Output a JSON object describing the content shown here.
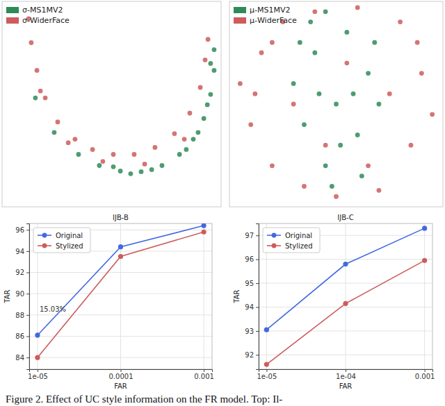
{
  "chart_data": [
    {
      "type": "scatter",
      "xlim": [
        0,
        100
      ],
      "ylim": [
        0,
        100
      ],
      "tick_labels": false,
      "grid": false,
      "legend": "upper left",
      "marker": "circle",
      "series": [
        {
          "name": "σ-MS1MV2",
          "color": "#2E8B57",
          "x": [
            34.9,
            44.4,
            54.0,
            63.5,
            73.0,
            81.0,
            87.3,
            92.1,
            95.2,
            96.8,
            96.8,
            50.8,
            68.3,
            84.1,
            93.7,
            95.2,
            23.8,
            15.2,
            58.7,
            89.5
          ],
          "y": [
            25.5,
            20.1,
            17.4,
            17.1,
            20.1,
            25.5,
            32.9,
            43.0,
            54.7,
            66.4,
            76.5,
            19.5,
            18.1,
            27.9,
            49.7,
            69.8,
            36.2,
            53.0,
            16.1,
            36.2
          ]
        },
        {
          "name": "σ-WiderFace",
          "color": "#CD5C5C",
          "x": [
            12.1,
            13.3,
            15.9,
            19.7,
            25.4,
            33.3,
            41.3,
            50.8,
            60.3,
            69.8,
            78.7,
            85.7,
            90.5,
            92.7,
            94.0,
            17.5,
            30.2,
            46.0,
            65.1,
            83.2
          ],
          "y": [
            91.6,
            79.9,
            66.4,
            53.0,
            41.3,
            32.9,
            27.9,
            25.5,
            25.5,
            28.9,
            35.6,
            45.6,
            58.1,
            71.5,
            81.5,
            56.4,
            31.2,
            22.1,
            20.8,
            32.9
          ]
        }
      ]
    },
    {
      "type": "scatter",
      "xlim": [
        0,
        100
      ],
      "ylim": [
        0,
        100
      ],
      "tick_labels": false,
      "grid": false,
      "legend": "upper left",
      "marker": "circle",
      "series": [
        {
          "name": "μ-MS1MV2",
          "color": "#2E8B57",
          "x": [
            30,
            35,
            40,
            45,
            50,
            55,
            60,
            65,
            38,
            62,
            48,
            70,
            42,
            58,
            52,
            33,
            68,
            45
          ],
          "y": [
            60,
            40,
            75,
            20,
            50,
            85,
            35,
            65,
            90,
            15,
            10,
            50,
            55,
            55,
            30,
            80,
            80,
            95
          ]
        },
        {
          "name": "μ-WiderFace",
          "color": "#CD5C5C",
          "x": [
            5,
            10,
            15,
            20,
            25,
            35,
            40,
            50,
            60,
            70,
            80,
            85,
            90,
            95,
            75,
            12,
            30,
            88,
            65,
            20,
            45,
            55
          ],
          "y": [
            60,
            40,
            75,
            20,
            90,
            10,
            95,
            5,
            97,
            8,
            90,
            30,
            65,
            45,
            55,
            55,
            50,
            80,
            20,
            80,
            30,
            70
          ]
        }
      ]
    },
    {
      "type": "line",
      "title": "IJB-B",
      "x_label": "FAR",
      "y_label": "TAR",
      "categories": [
        "1e-05",
        "0.0001",
        "0.001"
      ],
      "ylim": [
        82.9,
        96.6
      ],
      "yticks": [
        84,
        86,
        88,
        90,
        92,
        94,
        96
      ],
      "grid": true,
      "legend": "upper left",
      "marker": "circle",
      "line_style": "solid",
      "series": [
        {
          "name": "Original",
          "color": "#4169E1",
          "values": [
            86.1,
            94.4,
            96.4
          ]
        },
        {
          "name": "Stylized",
          "color": "#CD5C5C",
          "values": [
            84.0,
            93.5,
            95.8
          ]
        }
      ],
      "annotations": [
        {
          "text": "15.03%",
          "x": "1e-05",
          "y": 88.6
        }
      ]
    },
    {
      "type": "line",
      "title": "IJB-C",
      "x_label": "FAR",
      "y_label": "TAR",
      "categories": [
        "1e-05",
        "1e-04",
        "0.001"
      ],
      "ylim": [
        91.4,
        97.5
      ],
      "yticks": [
        92,
        93,
        94,
        95,
        96,
        97
      ],
      "grid": true,
      "legend": "upper left",
      "marker": "circle",
      "line_style": "solid",
      "series": [
        {
          "name": "Original",
          "color": "#4169E1",
          "values": [
            93.05,
            95.8,
            97.3
          ]
        },
        {
          "name": "Stylized",
          "color": "#CD5C5C",
          "values": [
            91.6,
            94.15,
            95.95
          ]
        }
      ]
    }
  ],
  "caption": "Figure 2. Effect of UC style information on the FR model. Top: Il-"
}
